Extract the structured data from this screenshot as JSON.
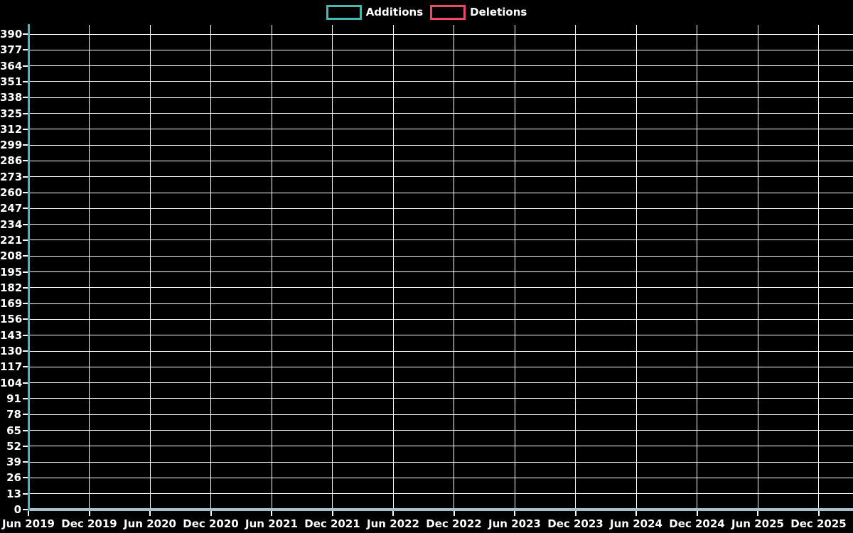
{
  "page": {
    "background_color": "#000000",
    "text_color": "#ffffff",
    "gridline_color": "#ffffff",
    "zero_line_color": "#a8c0cb"
  },
  "legend": {
    "items": [
      {
        "label": "Additions",
        "color": "#46b8b0"
      },
      {
        "label": "Deletions",
        "color": "#ef476b"
      }
    ]
  },
  "chart_data": {
    "type": "line",
    "title": "",
    "xlabel": "",
    "ylabel": "",
    "categories": [
      "Jun 2019",
      "Dec 2019",
      "Jun 2020",
      "Dec 2020",
      "Jun 2021",
      "Dec 2021",
      "Jun 2022",
      "Dec 2022",
      "Jun 2023",
      "Dec 2023",
      "Jun 2024",
      "Dec 2024",
      "Jun 2025",
      "Dec 2025"
    ],
    "series": [
      {
        "name": "Additions",
        "color": "#46b8b0",
        "values": [
          398,
          0,
          0,
          0,
          0,
          0,
          0,
          0,
          0,
          0,
          0,
          0,
          0,
          0
        ]
      },
      {
        "name": "Deletions",
        "color": "#ef476b",
        "values": [
          3,
          0,
          0,
          0,
          0,
          0,
          0,
          0,
          0,
          0,
          0,
          0,
          0,
          0
        ]
      }
    ],
    "ylim": [
      0,
      398
    ],
    "ytick_interval": 13,
    "yticks": [
      0,
      13,
      26,
      39,
      52,
      65,
      78,
      91,
      104,
      117,
      130,
      143,
      156,
      169,
      182,
      195,
      208,
      221,
      234,
      247,
      260,
      273,
      286,
      299,
      312,
      325,
      338,
      351,
      364,
      377,
      390
    ],
    "grid": true,
    "legend_position": "top",
    "annotations": "Additions show a single narrow spike at Jun 2019 reaching the top of the chart (~398); Deletions show a tiny spike (~3) at Jun 2019; both series are flat at 0 for the rest of the range, drawn as a pale steel-blue line along y=0."
  }
}
